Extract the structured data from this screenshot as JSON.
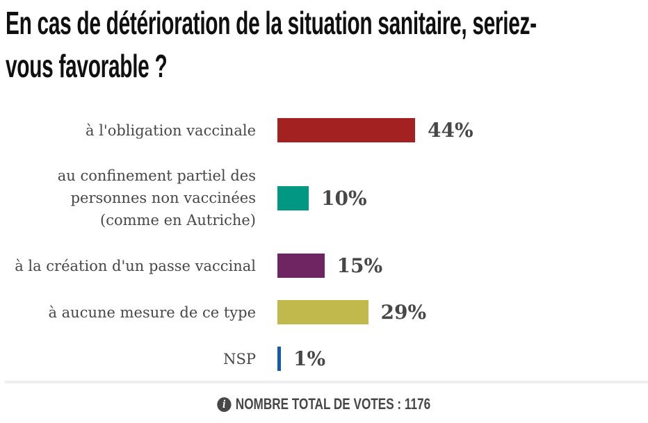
{
  "title": {
    "line1": "En cas de détérioration de la situation sanitaire, seriez-",
    "line2": "vous favorable ?",
    "full": "En cas de détérioration de la situation sanitaire, seriez-vous favorable ?"
  },
  "chart_data": {
    "type": "bar",
    "orientation": "horizontal",
    "title": "En cas de détérioration de la situation sanitaire, seriez-vous favorable ?",
    "value_unit": "%",
    "xlim": [
      0,
      100
    ],
    "grid": false,
    "legend": false,
    "categories": [
      "à l'obligation vaccinale",
      "au confinement partiel des personnes non vaccinées (comme en Autriche)",
      "à la création d'un passe vaccinal",
      "à aucune mesure de ce type",
      "NSP"
    ],
    "values": [
      44,
      10,
      15,
      29,
      1
    ],
    "items": [
      {
        "label_lines": [
          "à l'obligation vaccinale"
        ],
        "value": 44,
        "display": "44%",
        "color": "#a42122"
      },
      {
        "label_lines": [
          "au confinement partiel des",
          "personnes non vaccinées",
          "(comme en Autriche)"
        ],
        "value": 10,
        "display": "10%",
        "color": "#009883"
      },
      {
        "label_lines": [
          "à la création d'un passe vaccinal"
        ],
        "value": 15,
        "display": "15%",
        "color": "#6e2562"
      },
      {
        "label_lines": [
          "à aucune mesure de ce type"
        ],
        "value": 29,
        "display": "29%",
        "color": "#c1b94c"
      },
      {
        "label_lines": [
          "NSP"
        ],
        "value": 1,
        "display": "1%",
        "color": "#1459aa"
      }
    ],
    "total_votes": 1176
  },
  "footer": {
    "info_icon_glyph": "i",
    "total_votes_text": "NOMBRE TOTAL DE VOTES : 1176"
  },
  "colors": {
    "bar_red": "#a42122",
    "bar_teal": "#009883",
    "bar_purple": "#6e2562",
    "bar_olive": "#c1b94c",
    "bar_blue": "#1459aa",
    "title_text": "#101010",
    "body_text": "#474747",
    "divider": "#eeeeee",
    "background": "#ffffff"
  }
}
